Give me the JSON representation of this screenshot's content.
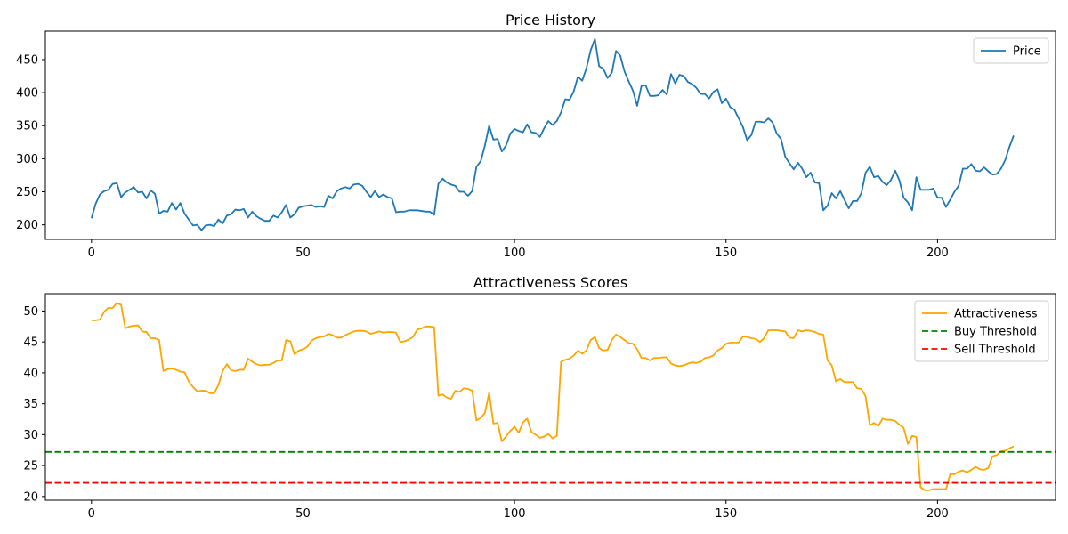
{
  "chart_data": [
    {
      "type": "line",
      "title": "Price History",
      "xlabel": "",
      "ylabel": "",
      "xlim": [
        -10.9,
        227.9
      ],
      "ylim": [
        178,
        493
      ],
      "xticks": [
        0,
        50,
        100,
        150,
        200
      ],
      "yticks": [
        200,
        250,
        300,
        350,
        400,
        450
      ],
      "grid": false,
      "legend_position": "top-right",
      "series": [
        {
          "name": "Price",
          "color": "#1f77b4",
          "style": "solid",
          "x_start": 0,
          "x_step": 1,
          "values": [
            210,
            232,
            246,
            251,
            253,
            262,
            263,
            242,
            249,
            253,
            257,
            249,
            250,
            240,
            252,
            247,
            217,
            221,
            220,
            233,
            223,
            233,
            217,
            208,
            199,
            200,
            192,
            199,
            200,
            198,
            208,
            202,
            214,
            216,
            223,
            222,
            224,
            211,
            220,
            213,
            209,
            206,
            206,
            214,
            211,
            219,
            230,
            211,
            216,
            226,
            228,
            229,
            230,
            227,
            228,
            227,
            244,
            240,
            251,
            255,
            257,
            255,
            261,
            262,
            259,
            250,
            242,
            251,
            242,
            246,
            242,
            240,
            219,
            220,
            220,
            222,
            222,
            222,
            221,
            220,
            220,
            215,
            262,
            270,
            264,
            261,
            259,
            250,
            250,
            244,
            251,
            288,
            296,
            320,
            350,
            329,
            330,
            311,
            320,
            338,
            345,
            342,
            340,
            352,
            340,
            339,
            333,
            346,
            357,
            351,
            357,
            370,
            390,
            389,
            402,
            424,
            418,
            437,
            464,
            481,
            440,
            436,
            422,
            430,
            463,
            456,
            432,
            417,
            403,
            380,
            410,
            411,
            395,
            395,
            396,
            404,
            397,
            428,
            414,
            427,
            425,
            416,
            413,
            407,
            398,
            398,
            391,
            401,
            405,
            384,
            391,
            378,
            374,
            361,
            348,
            328,
            336,
            356,
            356,
            355,
            361,
            355,
            338,
            330,
            303,
            293,
            284,
            294,
            285,
            272,
            279,
            264,
            263,
            222,
            229,
            248,
            240,
            251,
            238,
            225,
            236,
            236,
            248,
            279,
            288,
            272,
            274,
            265,
            260,
            268,
            282,
            267,
            241,
            234,
            222,
            272,
            253,
            253,
            253,
            255,
            241,
            241,
            227,
            238,
            250,
            259,
            285,
            285,
            292,
            282,
            281,
            287,
            281,
            276,
            277,
            285,
            298,
            318,
            335
          ]
        }
      ]
    },
    {
      "type": "line",
      "title": "Attractiveness Scores",
      "xlabel": "",
      "ylabel": "",
      "xlim": [
        -10.9,
        227.9
      ],
      "ylim": [
        19.4,
        52.8
      ],
      "xticks": [
        0,
        50,
        100,
        150,
        200
      ],
      "yticks": [
        20,
        25,
        30,
        35,
        40,
        45,
        50
      ],
      "grid": false,
      "legend_position": "top-right",
      "series": [
        {
          "name": "Attractiveness",
          "color": "#ffa500",
          "style": "solid",
          "x_start": 0,
          "x_step": 1,
          "values": [
            48.5,
            48.5,
            48.6,
            49.9,
            50.5,
            50.5,
            51.3,
            51.0,
            47.2,
            47.5,
            47.6,
            47.7,
            46.7,
            46.6,
            45.6,
            45.6,
            45.3,
            40.3,
            40.6,
            40.7,
            40.5,
            40.2,
            40.1,
            38.6,
            37.7,
            37.0,
            37.1,
            37.1,
            36.7,
            36.7,
            38.0,
            40.3,
            41.4,
            40.4,
            40.3,
            40.5,
            40.5,
            42.3,
            41.8,
            41.4,
            41.2,
            41.3,
            41.3,
            41.6,
            42.0,
            42.0,
            45.3,
            45.1,
            43.0,
            43.6,
            43.8,
            44.2,
            45.2,
            45.6,
            45.8,
            45.9,
            46.3,
            46.1,
            45.7,
            45.7,
            46.1,
            46.4,
            46.7,
            46.8,
            46.8,
            46.7,
            46.3,
            46.5,
            46.7,
            46.5,
            46.6,
            46.6,
            46.5,
            45.0,
            45.1,
            45.4,
            45.8,
            47.0,
            47.2,
            47.5,
            47.5,
            47.4,
            36.3,
            36.5,
            36.0,
            35.8,
            37.1,
            36.9,
            37.5,
            37.4,
            37.1,
            32.3,
            32.7,
            33.5,
            36.8,
            31.8,
            31.9,
            28.9,
            29.7,
            30.6,
            31.3,
            30.3,
            32.0,
            32.6,
            30.4,
            30.0,
            29.5,
            29.7,
            30.1,
            29.4,
            29.8,
            41.8,
            42.1,
            42.3,
            42.8,
            43.6,
            43.1,
            43.6,
            45.3,
            45.8,
            44.0,
            43.6,
            43.7,
            45.3,
            46.2,
            45.8,
            45.3,
            44.8,
            44.7,
            43.8,
            42.4,
            42.4,
            42.0,
            42.4,
            42.4,
            42.5,
            42.5,
            41.5,
            41.2,
            41.1,
            41.2,
            41.5,
            41.7,
            41.6,
            41.8,
            42.4,
            42.5,
            42.8,
            43.6,
            44.0,
            44.7,
            44.9,
            44.9,
            44.9,
            45.9,
            45.8,
            45.6,
            45.5,
            45.0,
            45.6,
            46.9,
            46.9,
            46.9,
            46.8,
            46.7,
            45.7,
            45.6,
            46.9,
            46.7,
            46.9,
            46.8,
            46.6,
            46.3,
            46.2,
            42.0,
            41.2,
            38.6,
            39.0,
            38.5,
            38.5,
            38.5,
            37.5,
            37.4,
            36.2,
            31.5,
            31.9,
            31.4,
            32.6,
            32.4,
            32.4,
            32.2,
            31.6,
            31.1,
            28.5,
            29.8,
            29.6,
            21.5,
            21.0,
            21.0,
            21.2,
            21.2,
            21.2,
            21.2,
            23.6,
            23.6,
            24.0,
            24.2,
            23.9,
            24.3,
            24.8,
            24.4,
            24.3,
            24.6,
            26.5,
            26.7,
            27.3,
            27.4,
            27.8,
            28.1
          ]
        },
        {
          "name": "Buy Threshold",
          "color": "#008000",
          "style": "dashed",
          "y": 27.2
        },
        {
          "name": "Sell Threshold",
          "color": "#ff0000",
          "style": "dashed",
          "y": 22.2
        }
      ]
    }
  ]
}
